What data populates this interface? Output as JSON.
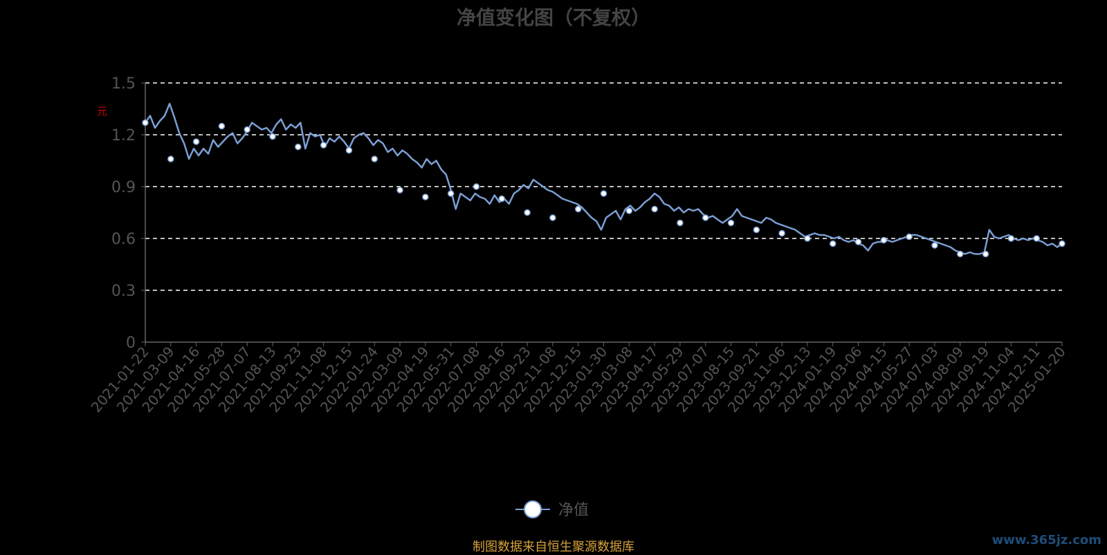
{
  "page": {
    "source_note": "制图数据来自恒生聚源数据库",
    "watermark": "www.365jz.com",
    "unit": "元"
  },
  "chart_data": {
    "type": "line",
    "title": "净值变化图（不复权）",
    "xlabel": "",
    "ylabel": "",
    "ylim": [
      0,
      1.5
    ],
    "yticks": [
      "0",
      "0.3",
      "0.6",
      "0.9",
      "1.2",
      "1.5"
    ],
    "grid": true,
    "legend": "bottom-center",
    "colors": {
      "line": "#7b9fd4",
      "grid": "#ffffff",
      "background": "#000000",
      "tick_text": "#555555"
    },
    "categories": [
      "2021-01-22",
      "2021-03-09",
      "2021-04-16",
      "2021-05-28",
      "2021-07-07",
      "2021-08-13",
      "2021-09-23",
      "2021-11-08",
      "2021-12-15",
      "2022-01-24",
      "2022-03-09",
      "2022-04-19",
      "2022-05-31",
      "2022-07-08",
      "2022-08-16",
      "2022-09-23",
      "2022-11-08",
      "2022-12-15",
      "2023-01-30",
      "2023-03-08",
      "2023-04-17",
      "2023-05-29",
      "2023-07-07",
      "2023-08-15",
      "2023-09-21",
      "2023-11-06",
      "2023-12-13",
      "2024-01-19",
      "2024-03-06",
      "2024-04-15",
      "2024-05-27",
      "2024-07-03",
      "2024-08-09",
      "2024-09-19",
      "2024-11-04",
      "2024-12-11",
      "2025-01-20"
    ],
    "series": [
      {
        "name": "净值",
        "values": [
          1.27,
          1.06,
          1.16,
          1.25,
          1.23,
          1.19,
          1.13,
          1.14,
          1.11,
          1.06,
          0.88,
          0.84,
          0.86,
          0.9,
          0.83,
          0.75,
          0.72,
          0.77,
          0.86,
          0.76,
          0.77,
          0.69,
          0.72,
          0.69,
          0.65,
          0.63,
          0.6,
          0.57,
          0.58,
          0.59,
          0.61,
          0.56,
          0.51,
          0.51,
          0.6,
          0.6,
          0.57
        ]
      }
    ],
    "detail_values": [
      1.27,
      1.31,
      1.24,
      1.28,
      1.31,
      1.38,
      1.3,
      1.21,
      1.15,
      1.06,
      1.12,
      1.08,
      1.12,
      1.09,
      1.17,
      1.13,
      1.16,
      1.19,
      1.21,
      1.15,
      1.18,
      1.22,
      1.27,
      1.25,
      1.23,
      1.24,
      1.21,
      1.26,
      1.29,
      1.23,
      1.26,
      1.24,
      1.27,
      1.12,
      1.21,
      1.19,
      1.2,
      1.13,
      1.18,
      1.16,
      1.19,
      1.16,
      1.12,
      1.18,
      1.2,
      1.21,
      1.18,
      1.14,
      1.17,
      1.15,
      1.1,
      1.12,
      1.08,
      1.11,
      1.09,
      1.06,
      1.04,
      1.01,
      1.06,
      1.03,
      1.05,
      1.0,
      0.97,
      0.88,
      0.77,
      0.86,
      0.84,
      0.82,
      0.86,
      0.84,
      0.83,
      0.8,
      0.85,
      0.81,
      0.83,
      0.8,
      0.86,
      0.88,
      0.91,
      0.89,
      0.94,
      0.92,
      0.9,
      0.88,
      0.87,
      0.85,
      0.83,
      0.82,
      0.81,
      0.8,
      0.78,
      0.75,
      0.72,
      0.7,
      0.65,
      0.72,
      0.74,
      0.76,
      0.71,
      0.77,
      0.79,
      0.76,
      0.78,
      0.81,
      0.83,
      0.86,
      0.84,
      0.8,
      0.79,
      0.76,
      0.78,
      0.75,
      0.77,
      0.76,
      0.77,
      0.74,
      0.72,
      0.73,
      0.71,
      0.69,
      0.71,
      0.73,
      0.77,
      0.73,
      0.72,
      0.71,
      0.7,
      0.69,
      0.72,
      0.71,
      0.69,
      0.68,
      0.67,
      0.66,
      0.65,
      0.63,
      0.61,
      0.62,
      0.63,
      0.62,
      0.62,
      0.61,
      0.6,
      0.61,
      0.59,
      0.58,
      0.59,
      0.57,
      0.56,
      0.53,
      0.57,
      0.58,
      0.58,
      0.59,
      0.58,
      0.59,
      0.6,
      0.61,
      0.62,
      0.62,
      0.61,
      0.6,
      0.59,
      0.58,
      0.57,
      0.56,
      0.55,
      0.53,
      0.52,
      0.51,
      0.52,
      0.51,
      0.51,
      0.52,
      0.65,
      0.61,
      0.6,
      0.61,
      0.62,
      0.6,
      0.59,
      0.6,
      0.59,
      0.6,
      0.59,
      0.58,
      0.56,
      0.57,
      0.55,
      0.57
    ]
  }
}
